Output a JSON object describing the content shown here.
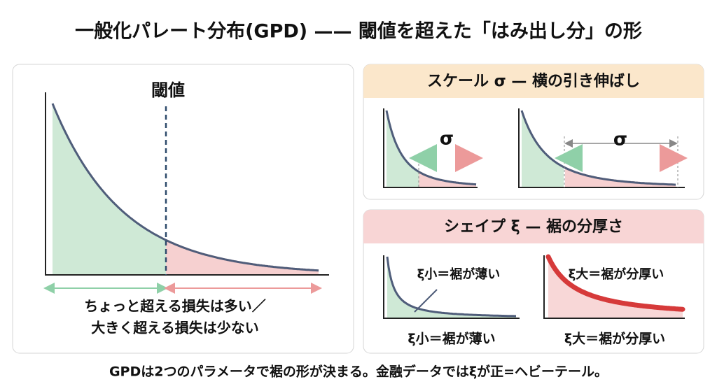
{
  "header": {
    "title": "一般化パレート分布(GPD) —— 閾値を超えた「はみ出し分」の形"
  },
  "main_panel": {
    "threshold_label": "閾値",
    "caption_lines": [
      "ちょっと超える損失は多い／",
      "大きく超える損失は少ない"
    ]
  },
  "scale_panel": {
    "title": "スケール σ — 横の引き伸ばし",
    "small_label": "σ",
    "large_label": "σ"
  },
  "shape_panel": {
    "title": "シェイプ ξ — 裾の分厚さ",
    "thin_label": "ξ小＝裾が薄い",
    "thick_label": "ξ大＝裾が分厚い",
    "thin_caption": "ξ小＝裾が薄い",
    "thick_caption": "ξ大＝裾が分厚い"
  },
  "footer": {
    "text": "GPDは2つのパラメータで裾の形が決まる。金融データではξが正=ヘビーテール。"
  }
}
